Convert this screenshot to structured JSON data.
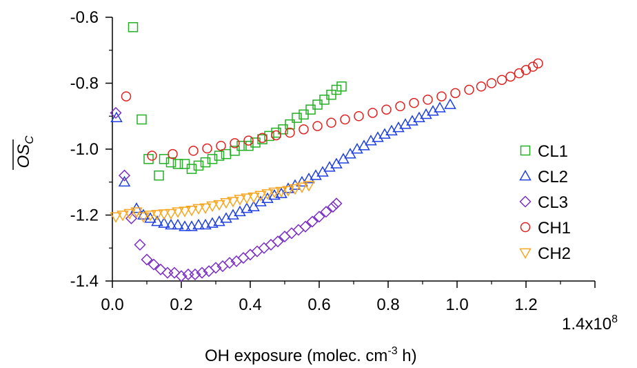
{
  "chart_data": {
    "type": "scatter",
    "title": "",
    "xlabel": "OH exposure (molec. cm",
    "xlabel_sup": "-3",
    "xlabel_tail": " h)",
    "ylabel": "OS",
    "ylabel_sub": "C",
    "x_multiplier_label": "1.4x10",
    "x_multiplier_exp": "8",
    "xlim": [
      0.0,
      1.4
    ],
    "ylim": [
      -1.4,
      -0.6
    ],
    "x_ticks": [
      0.0,
      0.2,
      0.4,
      0.6,
      0.8,
      1.0,
      1.2
    ],
    "x_tick_labels": [
      "0.0",
      "0.2",
      "0.4",
      "0.6",
      "0.8",
      "1.0",
      "1.2"
    ],
    "y_ticks": [
      -1.4,
      -1.2,
      -1.0,
      -0.8,
      -0.6
    ],
    "y_tick_labels": [
      "-1.4",
      "-1.2",
      "-1.0",
      "-0.8",
      "-0.6"
    ],
    "grid": false,
    "legend_position": "right",
    "series": [
      {
        "name": "CL1",
        "marker": "square",
        "color": "#22b022",
        "points": [
          [
            0.06,
            -0.63
          ],
          [
            0.085,
            -0.91
          ],
          [
            0.105,
            -1.03
          ],
          [
            0.135,
            -1.08
          ],
          [
            0.15,
            -1.03
          ],
          [
            0.17,
            -1.04
          ],
          [
            0.19,
            -1.045
          ],
          [
            0.21,
            -1.045
          ],
          [
            0.23,
            -1.06
          ],
          [
            0.25,
            -1.05
          ],
          [
            0.27,
            -1.04
          ],
          [
            0.29,
            -1.03
          ],
          [
            0.31,
            -1.02
          ],
          [
            0.33,
            -1.015
          ],
          [
            0.355,
            -1.005
          ],
          [
            0.375,
            -0.99
          ],
          [
            0.395,
            -0.99
          ],
          [
            0.415,
            -0.98
          ],
          [
            0.435,
            -0.97
          ],
          [
            0.455,
            -0.96
          ],
          [
            0.475,
            -0.95
          ],
          [
            0.495,
            -0.94
          ],
          [
            0.515,
            -0.925
          ],
          [
            0.535,
            -0.905
          ],
          [
            0.555,
            -0.895
          ],
          [
            0.575,
            -0.88
          ],
          [
            0.595,
            -0.865
          ],
          [
            0.615,
            -0.85
          ],
          [
            0.635,
            -0.835
          ],
          [
            0.65,
            -0.82
          ],
          [
            0.665,
            -0.81
          ]
        ]
      },
      {
        "name": "CL2",
        "marker": "triangle-up",
        "color": "#1f3fe0",
        "points": [
          [
            0.012,
            -0.905
          ],
          [
            0.035,
            -1.1
          ],
          [
            0.07,
            -1.18
          ],
          [
            0.09,
            -1.2
          ],
          [
            0.11,
            -1.21
          ],
          [
            0.13,
            -1.22
          ],
          [
            0.15,
            -1.225
          ],
          [
            0.17,
            -1.23
          ],
          [
            0.19,
            -1.23
          ],
          [
            0.21,
            -1.235
          ],
          [
            0.23,
            -1.235
          ],
          [
            0.25,
            -1.23
          ],
          [
            0.27,
            -1.23
          ],
          [
            0.29,
            -1.225
          ],
          [
            0.31,
            -1.22
          ],
          [
            0.33,
            -1.21
          ],
          [
            0.35,
            -1.2
          ],
          [
            0.37,
            -1.19
          ],
          [
            0.39,
            -1.18
          ],
          [
            0.41,
            -1.175
          ],
          [
            0.43,
            -1.16
          ],
          [
            0.45,
            -1.15
          ],
          [
            0.47,
            -1.14
          ],
          [
            0.49,
            -1.135
          ],
          [
            0.51,
            -1.12
          ],
          [
            0.53,
            -1.11
          ],
          [
            0.55,
            -1.1
          ],
          [
            0.57,
            -1.09
          ],
          [
            0.59,
            -1.08
          ],
          [
            0.61,
            -1.07
          ],
          [
            0.63,
            -1.055
          ],
          [
            0.65,
            -1.045
          ],
          [
            0.67,
            -1.03
          ],
          [
            0.69,
            -1.015
          ],
          [
            0.71,
            -1.0
          ],
          [
            0.73,
            -0.99
          ],
          [
            0.75,
            -0.975
          ],
          [
            0.77,
            -0.965
          ],
          [
            0.79,
            -0.955
          ],
          [
            0.81,
            -0.945
          ],
          [
            0.83,
            -0.935
          ],
          [
            0.85,
            -0.925
          ],
          [
            0.87,
            -0.915
          ],
          [
            0.89,
            -0.905
          ],
          [
            0.91,
            -0.895
          ],
          [
            0.93,
            -0.885
          ],
          [
            0.95,
            -0.875
          ],
          [
            0.98,
            -0.865
          ]
        ]
      },
      {
        "name": "CL3",
        "marker": "diamond",
        "color": "#7a2ec4",
        "points": [
          [
            0.01,
            -0.89
          ],
          [
            0.035,
            -1.08
          ],
          [
            0.055,
            -1.21
          ],
          [
            0.08,
            -1.29
          ],
          [
            0.1,
            -1.335
          ],
          [
            0.12,
            -1.35
          ],
          [
            0.14,
            -1.365
          ],
          [
            0.16,
            -1.375
          ],
          [
            0.18,
            -1.375
          ],
          [
            0.2,
            -1.385
          ],
          [
            0.22,
            -1.38
          ],
          [
            0.24,
            -1.38
          ],
          [
            0.26,
            -1.375
          ],
          [
            0.28,
            -1.37
          ],
          [
            0.3,
            -1.36
          ],
          [
            0.32,
            -1.355
          ],
          [
            0.34,
            -1.345
          ],
          [
            0.36,
            -1.34
          ],
          [
            0.38,
            -1.33
          ],
          [
            0.4,
            -1.32
          ],
          [
            0.42,
            -1.31
          ],
          [
            0.44,
            -1.3
          ],
          [
            0.46,
            -1.29
          ],
          [
            0.48,
            -1.28
          ],
          [
            0.5,
            -1.265
          ],
          [
            0.52,
            -1.255
          ],
          [
            0.54,
            -1.245
          ],
          [
            0.56,
            -1.235
          ],
          [
            0.58,
            -1.22
          ],
          [
            0.6,
            -1.205
          ],
          [
            0.62,
            -1.19
          ],
          [
            0.64,
            -1.175
          ],
          [
            0.65,
            -1.165
          ]
        ]
      },
      {
        "name": "CH1",
        "marker": "circle",
        "color": "#e02020",
        "points": [
          [
            0.04,
            -0.84
          ],
          [
            0.115,
            -1.02
          ],
          [
            0.175,
            -1.015
          ],
          [
            0.235,
            -1.005
          ],
          [
            0.275,
            -0.998
          ],
          [
            0.315,
            -0.99
          ],
          [
            0.355,
            -0.982
          ],
          [
            0.395,
            -0.974
          ],
          [
            0.435,
            -0.966
          ],
          [
            0.475,
            -0.958
          ],
          [
            0.515,
            -0.95
          ],
          [
            0.555,
            -0.94
          ],
          [
            0.595,
            -0.93
          ],
          [
            0.635,
            -0.92
          ],
          [
            0.675,
            -0.91
          ],
          [
            0.715,
            -0.9
          ],
          [
            0.755,
            -0.89
          ],
          [
            0.795,
            -0.88
          ],
          [
            0.835,
            -0.87
          ],
          [
            0.875,
            -0.86
          ],
          [
            0.915,
            -0.85
          ],
          [
            0.955,
            -0.84
          ],
          [
            0.995,
            -0.83
          ],
          [
            1.035,
            -0.82
          ],
          [
            1.07,
            -0.81
          ],
          [
            1.1,
            -0.8
          ],
          [
            1.13,
            -0.79
          ],
          [
            1.155,
            -0.78
          ],
          [
            1.18,
            -0.77
          ],
          [
            1.2,
            -0.76
          ],
          [
            1.22,
            -0.75
          ],
          [
            1.235,
            -0.74
          ]
        ]
      },
      {
        "name": "CH2",
        "marker": "triangle-down",
        "color": "#f5a623",
        "points": [
          [
            0.01,
            -1.205
          ],
          [
            0.03,
            -1.2
          ],
          [
            0.05,
            -1.195
          ],
          [
            0.07,
            -1.19
          ],
          [
            0.09,
            -1.205
          ],
          [
            0.11,
            -1.2
          ],
          [
            0.13,
            -1.198
          ],
          [
            0.15,
            -1.196
          ],
          [
            0.17,
            -1.195
          ],
          [
            0.19,
            -1.19
          ],
          [
            0.21,
            -1.188
          ],
          [
            0.23,
            -1.185
          ],
          [
            0.25,
            -1.18
          ],
          [
            0.27,
            -1.178
          ],
          [
            0.29,
            -1.172
          ],
          [
            0.31,
            -1.168
          ],
          [
            0.33,
            -1.162
          ],
          [
            0.35,
            -1.158
          ],
          [
            0.37,
            -1.152
          ],
          [
            0.39,
            -1.148
          ],
          [
            0.41,
            -1.145
          ],
          [
            0.43,
            -1.14
          ],
          [
            0.45,
            -1.135
          ],
          [
            0.47,
            -1.13
          ],
          [
            0.49,
            -1.128
          ],
          [
            0.51,
            -1.125
          ],
          [
            0.53,
            -1.12
          ],
          [
            0.55,
            -1.115
          ],
          [
            0.57,
            -1.11
          ]
        ]
      }
    ]
  }
}
